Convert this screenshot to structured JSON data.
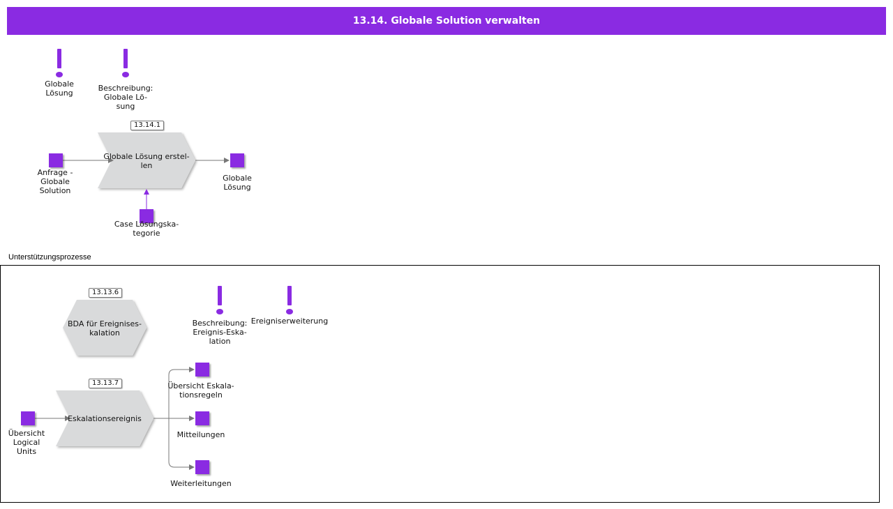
{
  "header": {
    "title": "13.14. Globale Solution verwalten"
  },
  "top": {
    "exclaim1_label": "Globale\nLösung",
    "exclaim2_label": "Beschreibung:\nGlobale Lö-\nsung",
    "process_tag": "13.14.1",
    "process_label": "Globale Lösung erstel-\nlen",
    "input_label": "Anfrage -\nGlobale\nSolution",
    "output_label": "Globale\nLösung",
    "bottom_input_label": "Case Lösungska-\ntegorie"
  },
  "support": {
    "section_title": "Unterstützungsprozesse",
    "hex_tag": "13.13.6",
    "hex_label": "BDA für Ereignises-\nkalation",
    "exclaim3_label": "Beschreibung:\nEreignis-Eska-\nlation",
    "exclaim4_label": "Ereigniserweiterung",
    "process_tag": "13.13.7",
    "process_label": "Eskalationsereignis",
    "input_label": "Übersicht\nLogical\nUnits",
    "out1_label": "Übersicht Eskala-\ntionsregeln",
    "out2_label": "Mitteilungen",
    "out3_label": "Weiterleitungen"
  },
  "colors": {
    "accent": "#8a2be2",
    "shape_fill": "#d9dadb",
    "connector": "#777777"
  },
  "icons": {
    "exclamation": "exclamation-icon"
  }
}
